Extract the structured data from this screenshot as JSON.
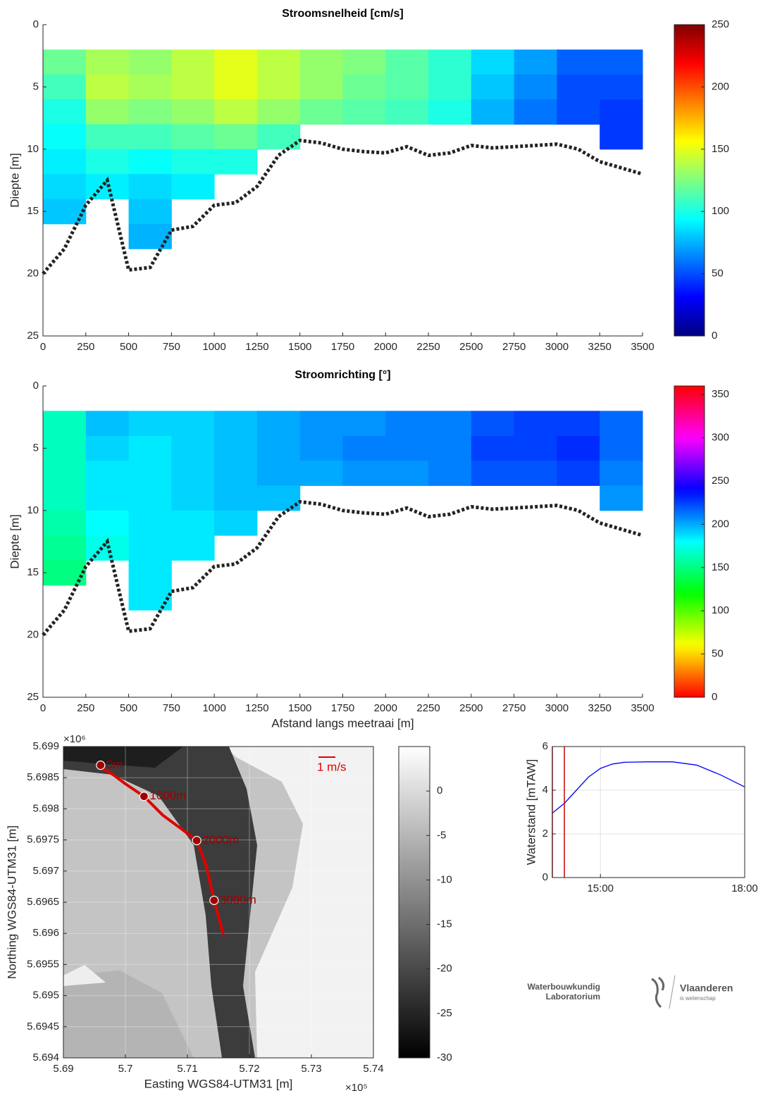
{
  "chart_data": [
    {
      "type": "heatmap",
      "title": "Stroomsnelheid [cm/s]",
      "ylabel": "Diepte [m]",
      "xlim": [
        0,
        3500
      ],
      "xticks": [
        0,
        250,
        500,
        750,
        1000,
        1250,
        1500,
        1750,
        2000,
        2250,
        2500,
        2750,
        3000,
        3250,
        3500
      ],
      "ylim": [
        0,
        25
      ],
      "yticks": [
        0,
        5,
        10,
        15,
        20,
        25
      ],
      "yreverse": true,
      "colormap": "jet",
      "clim": [
        0,
        250
      ],
      "cticks": [
        0,
        50,
        100,
        150,
        200,
        250
      ],
      "xbins": [
        0,
        250,
        500,
        750,
        1000,
        1250,
        1500,
        1750,
        2000,
        2250,
        2500,
        2750,
        3000,
        3250,
        3500
      ],
      "ybins": [
        2,
        4,
        6,
        8,
        10,
        12,
        14,
        16,
        18
      ],
      "z": [
        [
          120,
          135,
          130,
          140,
          150,
          140,
          130,
          125,
          115,
          105,
          85,
          70,
          55,
          55
        ],
        [
          110,
          140,
          135,
          140,
          150,
          140,
          130,
          120,
          115,
          105,
          80,
          65,
          50,
          50
        ],
        [
          100,
          130,
          125,
          130,
          140,
          130,
          120,
          115,
          110,
          100,
          75,
          60,
          50,
          45
        ],
        [
          95,
          110,
          110,
          115,
          120,
          110,
          null,
          null,
          null,
          null,
          null,
          null,
          null,
          45
        ],
        [
          90,
          100,
          95,
          100,
          100,
          null,
          null,
          null,
          null,
          null,
          null,
          null,
          null,
          null
        ],
        [
          85,
          90,
          85,
          90,
          null,
          null,
          null,
          null,
          null,
          null,
          null,
          null,
          null,
          null
        ],
        [
          80,
          null,
          80,
          null,
          null,
          null,
          null,
          null,
          null,
          null,
          null,
          null,
          null,
          null
        ],
        [
          null,
          null,
          75,
          null,
          null,
          null,
          null,
          null,
          null,
          null,
          null,
          null,
          null,
          null
        ]
      ],
      "series": [
        {
          "color": "#222222",
          "x": [
            0,
            125,
            250,
            375,
            500,
            625,
            750,
            875,
            1000,
            1125,
            1250,
            1375,
            1500,
            1625,
            1750,
            1875,
            2000,
            2125,
            2250,
            2375,
            2500,
            2625,
            2750,
            2875,
            3000,
            3125,
            3250,
            3375,
            3500
          ],
          "values": [
            20,
            18,
            14.5,
            12.5,
            19.7,
            19.5,
            16.5,
            16.2,
            14.5,
            14.3,
            13,
            10.5,
            9.3,
            9.5,
            10,
            10.2,
            10.3,
            9.8,
            10.5,
            10.3,
            9.7,
            9.9,
            9.8,
            9.7,
            9.6,
            10,
            11,
            11.5,
            12
          ]
        }
      ]
    },
    {
      "type": "heatmap",
      "title": "Stroomrichting [°]",
      "ylabel": "Diepte [m]",
      "xlabel": "Afstand langs meetraai [m]",
      "xlim": [
        0,
        3500
      ],
      "xticks": [
        0,
        250,
        500,
        750,
        1000,
        1250,
        1500,
        1750,
        2000,
        2250,
        2500,
        2750,
        3000,
        3250,
        3500
      ],
      "ylim": [
        0,
        25
      ],
      "yticks": [
        0,
        5,
        10,
        15,
        20,
        25
      ],
      "yreverse": true,
      "colormap": "hsv",
      "clim": [
        0,
        360
      ],
      "cticks": [
        0,
        50,
        100,
        150,
        200,
        250,
        300,
        350
      ],
      "xbins": [
        0,
        250,
        500,
        750,
        1000,
        1250,
        1500,
        1750,
        2000,
        2250,
        2500,
        2750,
        3000,
        3250,
        3500
      ],
      "ybins": [
        2,
        4,
        6,
        8,
        10,
        12,
        14,
        16,
        18
      ],
      "z": [
        [
          165,
          195,
          190,
          190,
          195,
          200,
          205,
          205,
          210,
          210,
          220,
          225,
          225,
          215
        ],
        [
          165,
          190,
          185,
          190,
          195,
          200,
          205,
          210,
          210,
          210,
          225,
          225,
          230,
          215
        ],
        [
          165,
          185,
          185,
          190,
          195,
          200,
          200,
          205,
          205,
          210,
          220,
          220,
          225,
          210
        ],
        [
          165,
          185,
          185,
          190,
          195,
          195,
          null,
          null,
          null,
          null,
          null,
          null,
          null,
          205
        ],
        [
          160,
          180,
          185,
          185,
          190,
          null,
          null,
          null,
          null,
          null,
          null,
          null,
          null,
          null
        ],
        [
          155,
          175,
          185,
          185,
          null,
          null,
          null,
          null,
          null,
          null,
          null,
          null,
          null,
          null
        ],
        [
          150,
          null,
          185,
          null,
          null,
          null,
          null,
          null,
          null,
          null,
          null,
          null,
          null,
          null
        ],
        [
          null,
          null,
          185,
          null,
          null,
          null,
          null,
          null,
          null,
          null,
          null,
          null,
          null,
          null
        ]
      ],
      "series": [
        {
          "color": "#222222",
          "x": [
            0,
            125,
            250,
            375,
            500,
            625,
            750,
            875,
            1000,
            1125,
            1250,
            1375,
            1500,
            1625,
            1750,
            1875,
            2000,
            2125,
            2250,
            2375,
            2500,
            2625,
            2750,
            2875,
            3000,
            3125,
            3250,
            3375,
            3500
          ],
          "values": [
            20,
            18,
            14.5,
            12.5,
            19.7,
            19.5,
            16.5,
            16.2,
            14.5,
            14.3,
            13,
            10.5,
            9.3,
            9.5,
            10,
            10.2,
            10.3,
            9.8,
            10.5,
            10.3,
            9.7,
            9.9,
            9.8,
            9.7,
            9.6,
            10,
            11,
            11.5,
            12
          ]
        }
      ]
    },
    {
      "type": "map",
      "xlabel": "Easting WGS84-UTM31 [m]",
      "ylabel": "Northing WGS84-UTM31 [m]",
      "x_multiplier": "×10⁵",
      "y_multiplier": "×10⁶",
      "xlim": [
        5.69,
        5.74
      ],
      "xticks": [
        5.69,
        5.7,
        5.71,
        5.72,
        5.73,
        5.74
      ],
      "ylim": [
        5.694,
        5.699
      ],
      "yticks": [
        5.694,
        5.6945,
        5.695,
        5.6955,
        5.696,
        5.6965,
        5.697,
        5.6975,
        5.698,
        5.6985,
        5.699
      ],
      "colormap": "gray",
      "clim": [
        -30,
        5
      ],
      "cticks": [
        -30,
        -25,
        -20,
        -15,
        -10,
        -5,
        0
      ],
      "grid": true,
      "scale_label": "1 m/s",
      "track": {
        "color": "#e00000",
        "x": [
          5.6955,
          5.698,
          5.7,
          5.703,
          5.706,
          5.709,
          5.7115,
          5.713,
          5.7143,
          5.7158
        ],
        "values": [
          5.6987,
          5.69855,
          5.6984,
          5.6982,
          5.6979,
          5.69768,
          5.69749,
          5.6971,
          5.69653,
          5.69598
        ]
      },
      "stations": {
        "color": "#a00000",
        "labels": [
          "0m",
          "1000m",
          "2000m",
          "3000m"
        ],
        "x": [
          5.696,
          5.703,
          5.7115,
          5.7143
        ],
        "values": [
          5.6987,
          5.6982,
          5.69749,
          5.69653
        ]
      }
    },
    {
      "type": "line",
      "ylabel": "Waterstand [mTAW]",
      "xlim": [
        14,
        18
      ],
      "xticks": [
        {
          "value": 15,
          "label": "15:00"
        },
        {
          "value": 18,
          "label": "18:00"
        }
      ],
      "ylim": [
        0,
        6
      ],
      "yticks": [
        0,
        2,
        4,
        6
      ],
      "grid": true,
      "series": [
        {
          "color": "#0000ff",
          "x": [
            14,
            14.25,
            14.5,
            14.75,
            15,
            15.25,
            15.5,
            16,
            16.5,
            17,
            17.5,
            18
          ],
          "values": [
            2.95,
            3.4,
            4.0,
            4.6,
            5.0,
            5.2,
            5.28,
            5.3,
            5.3,
            5.15,
            4.7,
            4.15
          ]
        }
      ],
      "vlines": {
        "color": "#d00000",
        "x": [
          14,
          14.25
        ]
      }
    }
  ],
  "logo": {
    "left_line1": "Waterbouwkundig",
    "left_line2": "Laboratorium",
    "right_line1": "Vlaanderen",
    "right_line2": "is wetenschap"
  }
}
